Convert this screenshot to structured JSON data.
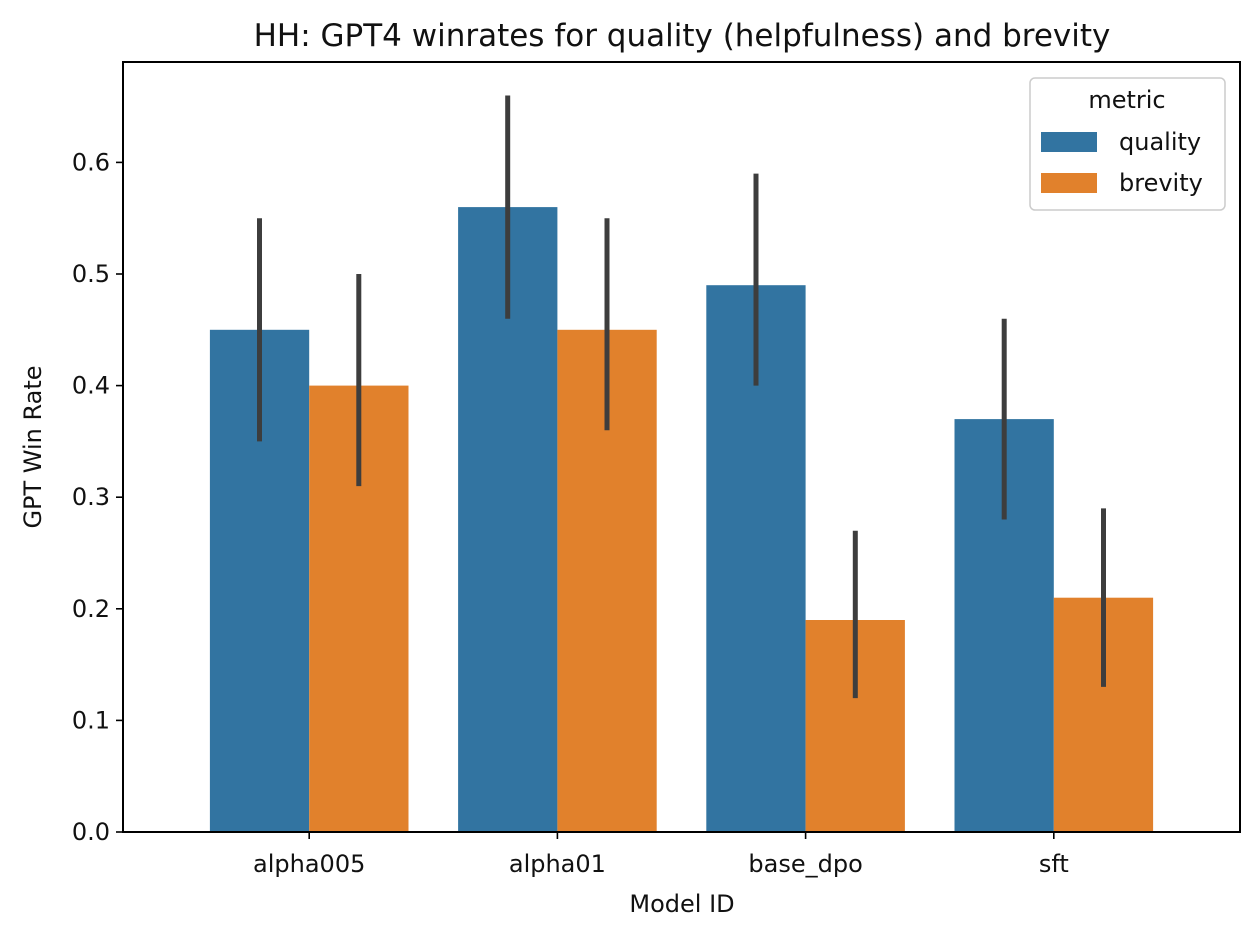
{
  "chart_data": {
    "type": "bar",
    "title": "HH: GPT4 winrates for quality (helpfulness) and brevity",
    "xlabel": "Model ID",
    "ylabel": "GPT Win Rate",
    "categories": [
      "alpha005",
      "alpha01",
      "base_dpo",
      "sft"
    ],
    "series": [
      {
        "name": "quality",
        "color": "#3274a1",
        "values": [
          0.45,
          0.56,
          0.49,
          0.37
        ],
        "ci_low": [
          0.35,
          0.46,
          0.4,
          0.28
        ],
        "ci_high": [
          0.55,
          0.66,
          0.59,
          0.46
        ]
      },
      {
        "name": "brevity",
        "color": "#e1812c",
        "values": [
          0.4,
          0.45,
          0.19,
          0.21
        ],
        "ci_low": [
          0.31,
          0.36,
          0.12,
          0.13
        ],
        "ci_high": [
          0.5,
          0.55,
          0.27,
          0.29
        ]
      }
    ],
    "ylim": [
      0,
      0.69
    ],
    "yticks": [
      "0.0",
      "0.1",
      "0.2",
      "0.3",
      "0.4",
      "0.5",
      "0.6"
    ],
    "error_bar_color": "#3d3d3d",
    "grid": false,
    "legend": {
      "title": "metric",
      "position": "top-right"
    }
  }
}
